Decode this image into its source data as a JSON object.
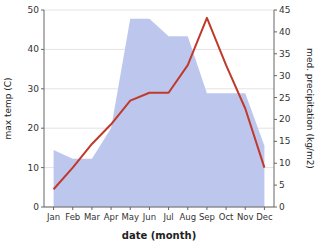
{
  "chart_data": {
    "type": "line",
    "categories": [
      "Jan",
      "Feb",
      "Mar",
      "Apr",
      "May",
      "Jun",
      "Jul",
      "Aug",
      "Sep",
      "Oct",
      "Nov",
      "Dec"
    ],
    "series": [
      {
        "type": "area",
        "axis": "y2",
        "color": "#bdc7ee",
        "values": [
          13,
          11,
          11,
          18,
          43,
          43,
          39,
          39,
          26,
          26,
          26,
          14
        ]
      },
      {
        "type": "line",
        "color": "#c0392b",
        "values": [
          4.5,
          10,
          16,
          21,
          27,
          29,
          29,
          36,
          48,
          36,
          25,
          10
        ]
      }
    ],
    "xlabel": "date (month)",
    "ylabel": "max temp (C)",
    "y2label": "med. precipitation (kg/m2)",
    "ylim": [
      0,
      50
    ],
    "yticks": [
      0,
      10,
      20,
      30,
      40,
      50
    ],
    "y2lim": [
      0,
      45
    ],
    "y2ticks": [
      0,
      5,
      10,
      15,
      20,
      25,
      30,
      35,
      40,
      45
    ],
    "grid": true
  }
}
